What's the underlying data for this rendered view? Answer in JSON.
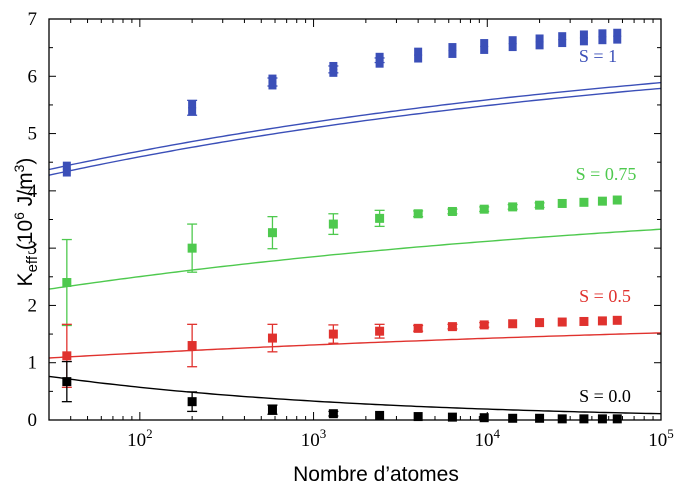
{
  "chart_data": {
    "type": "scatter",
    "xscale": "log",
    "xlim": [
      30,
      100000
    ],
    "ylim": [
      0,
      7
    ],
    "xlabel": "Nombre d’atomes",
    "ylabel": {
      "prefix": "K",
      "subscript": "eff",
      "open": " (10",
      "exp": "6",
      "unit": " J/m",
      "unit_exp": "3",
      "close": ")"
    },
    "xticks": [
      {
        "base": "10",
        "exp": "2",
        "value": 100
      },
      {
        "base": "10",
        "exp": "3",
        "value": 1000
      },
      {
        "base": "10",
        "exp": "4",
        "value": 10000
      },
      {
        "base": "10",
        "exp": "5",
        "value": 100000
      }
    ],
    "yticks": [
      "0",
      "1",
      "2",
      "3",
      "4",
      "5",
      "6",
      "7"
    ],
    "series": [
      {
        "name": "S = 1",
        "color": "#3b4fb8",
        "double": true,
        "x": [
          38,
          200,
          580,
          1300,
          2400,
          4000,
          6300,
          9600,
          14000,
          20000,
          27000,
          36000,
          46000,
          56000
        ],
        "y": [
          4.38,
          5.45,
          5.9,
          6.12,
          6.28,
          6.37,
          6.45,
          6.52,
          6.57,
          6.6,
          6.64,
          6.67,
          6.69,
          6.7
        ],
        "err": [
          0,
          0.13,
          0.07,
          0.06,
          0.04,
          0.03,
          0.03,
          0.02,
          0.02,
          0.02,
          0.02,
          0.02,
          0.02,
          0.02
        ],
        "fit": {
          "a": 6.85,
          "b": 2.46,
          "c": 0.26
        }
      },
      {
        "name": "S = 0.75",
        "color": "#4ec94e",
        "double": false,
        "x": [
          38,
          200,
          580,
          1300,
          2400,
          4000,
          6300,
          9600,
          14000,
          20000,
          27000,
          36000,
          46000,
          56000
        ],
        "y": [
          2.4,
          3.0,
          3.27,
          3.42,
          3.52,
          3.6,
          3.64,
          3.68,
          3.72,
          3.75,
          3.78,
          3.8,
          3.82,
          3.84
        ],
        "err": [
          0.75,
          0.42,
          0.28,
          0.18,
          0.14,
          0.05,
          0.04,
          0.04,
          0.04,
          0.04,
          0.03,
          0.03,
          0.03,
          0.03
        ],
        "fit": {
          "a": 4.07,
          "b": 1.74,
          "c": 0.25
        }
      },
      {
        "name": "S = 0.5",
        "color": "#e0322e",
        "double": false,
        "x": [
          38,
          200,
          580,
          1300,
          2400,
          4000,
          6300,
          9600,
          14000,
          20000,
          27000,
          36000,
          46000,
          56000
        ],
        "y": [
          1.12,
          1.3,
          1.43,
          1.5,
          1.55,
          1.6,
          1.63,
          1.66,
          1.68,
          1.7,
          1.71,
          1.72,
          1.73,
          1.74
        ],
        "err": [
          0.55,
          0.37,
          0.24,
          0.16,
          0.12,
          0.05,
          0.04,
          0.04,
          0.03,
          0.03,
          0.03,
          0.03,
          0.03,
          0.03
        ],
        "fit": {
          "a": 1.95,
          "b": 0.85,
          "c": 0.2
        }
      },
      {
        "name": "S = 0.0",
        "color": "#000000",
        "double": false,
        "x": [
          38,
          200,
          580,
          1300,
          2400,
          4000,
          6300,
          9600,
          14000,
          20000,
          27000,
          36000,
          46000,
          56000
        ],
        "y": [
          0.67,
          0.32,
          0.18,
          0.11,
          0.08,
          0.06,
          0.05,
          0.04,
          0.03,
          0.03,
          0.02,
          0.02,
          0.02,
          0.02
        ],
        "err": [
          0.35,
          0.17,
          0.08,
          0.04,
          0.03,
          0.02,
          0.02,
          0.01,
          0.01,
          0.01,
          0.01,
          0.01,
          0.01,
          0.01
        ],
        "fit": {
          "a": 0,
          "b": -0.72,
          "c": 0.55
        }
      }
    ]
  }
}
